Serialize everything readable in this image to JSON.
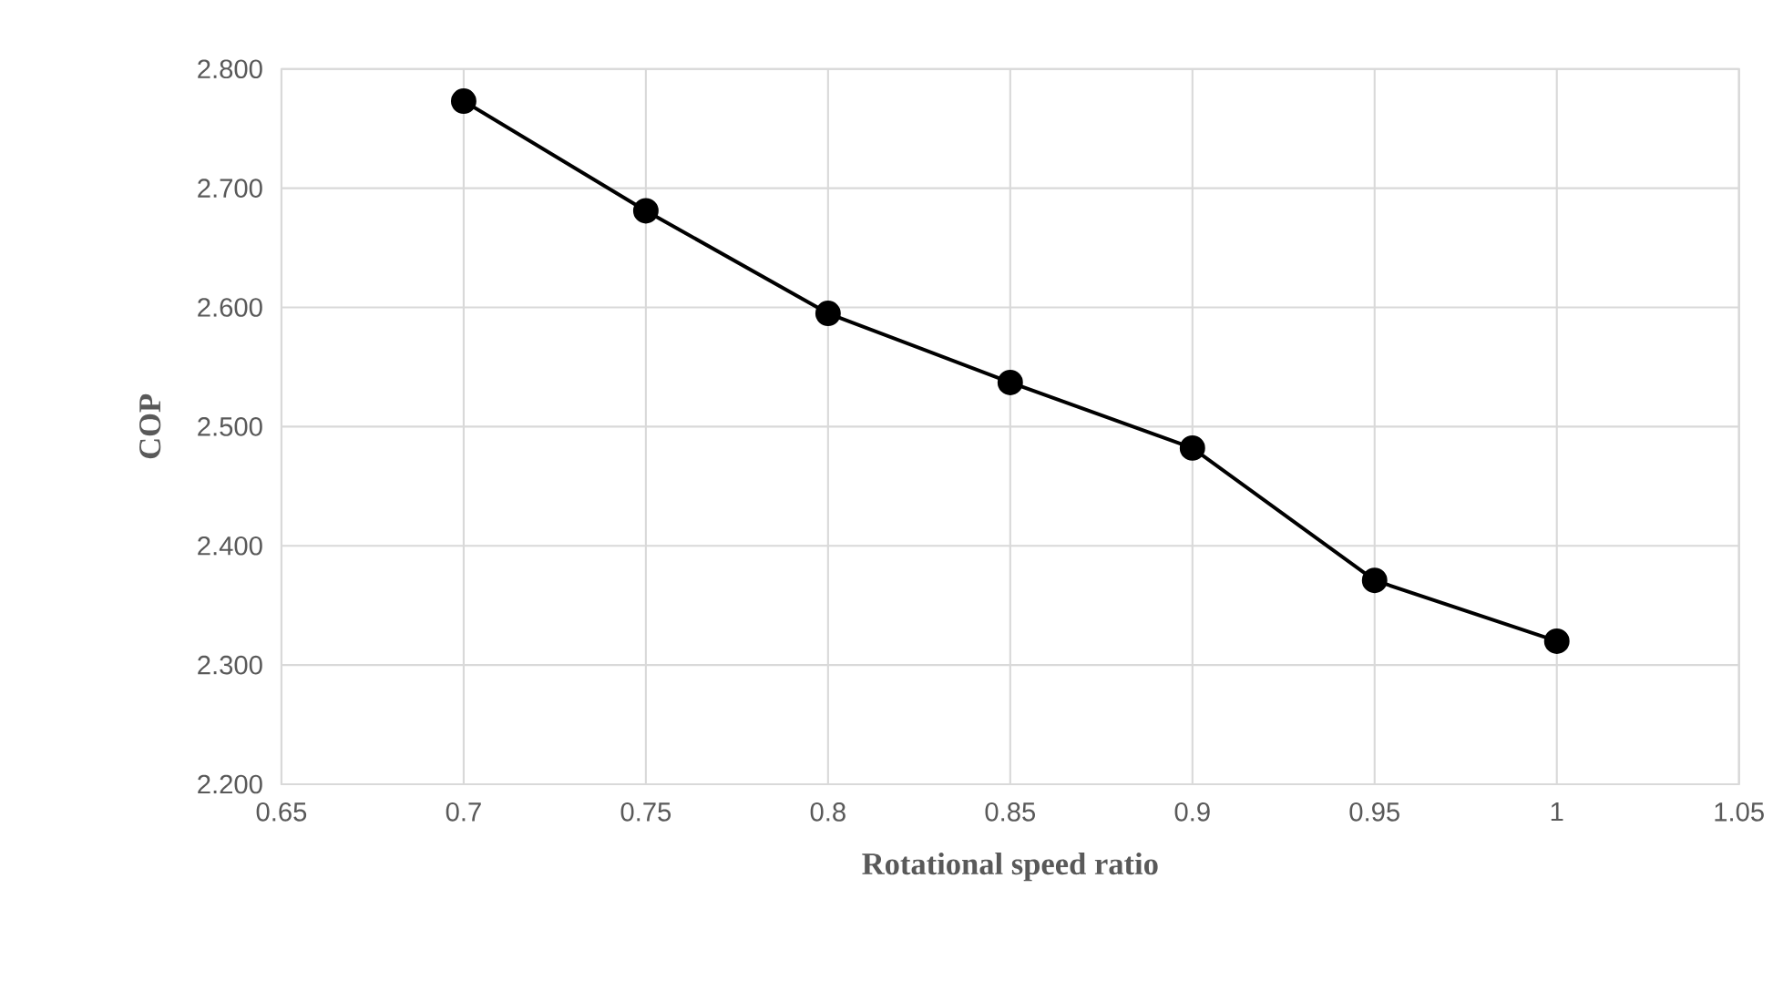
{
  "chart_data": {
    "type": "line",
    "xlabel": "Rotational speed ratio",
    "ylabel": "COP",
    "x": [
      0.7,
      0.75,
      0.8,
      0.85,
      0.9,
      0.95,
      1.0
    ],
    "series": [
      {
        "color": "#000000",
        "values": [
          2.773,
          2.681,
          2.595,
          2.537,
          2.482,
          2.371,
          2.32
        ]
      }
    ],
    "xlim": [
      0.65,
      1.05
    ],
    "xticks": [
      0.65,
      0.7,
      0.75,
      0.8,
      0.85,
      0.9,
      0.95,
      1,
      1.05
    ],
    "ylim": [
      2.2,
      2.8
    ],
    "yticks": [
      {
        "value": 2.2,
        "label": "2.200"
      },
      {
        "value": 2.3,
        "label": "2.300"
      },
      {
        "value": 2.4,
        "label": "2.400"
      },
      {
        "value": 2.5,
        "label": "2.500"
      },
      {
        "value": 2.6,
        "label": "2.600"
      },
      {
        "value": 2.7,
        "label": "2.700"
      },
      {
        "value": 2.8,
        "label": "2.800"
      }
    ],
    "grid": true,
    "marker": "circle",
    "line_style": "solid"
  }
}
